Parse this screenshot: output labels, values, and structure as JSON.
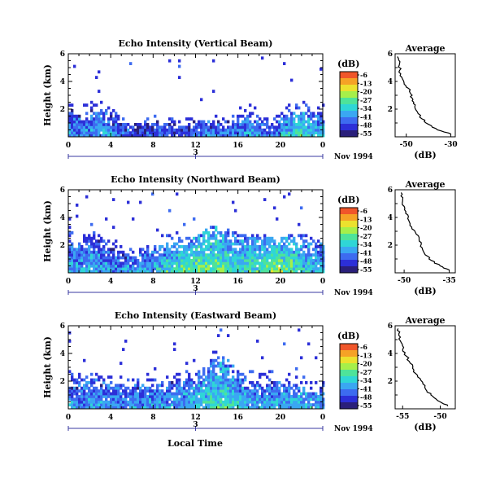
{
  "colormap": [
    "#2a1f7a",
    "#2c2fd8",
    "#3d6bf0",
    "#3aa7f2",
    "#2fd6d6",
    "#4ee39a",
    "#a6ef4a",
    "#ece12e",
    "#f5a226",
    "#f0562a"
  ],
  "footer": {
    "xlabel": "Local Time"
  },
  "chart_data": [
    {
      "type": "heatmap",
      "title": "Echo Intensity (Vertical Beam)",
      "ylabel": "Height (km)",
      "ylim": [
        0,
        6
      ],
      "xlim": [
        0,
        24
      ],
      "x_ticks": [
        "0",
        "4",
        "8",
        "12",
        "16",
        "20",
        "0"
      ],
      "y_ticks": [
        "2",
        "4",
        "6"
      ],
      "date_tick": "3",
      "date_label": "Nov 1994",
      "colorbar": {
        "unit": "(dB)",
        "ticks": [
          "-6",
          "-13",
          "-20",
          "-27",
          "-34",
          "-41",
          "-48",
          "-55"
        ]
      },
      "profile_top_km": [
        2.2,
        1.8,
        2.0,
        2.3,
        1.6,
        1.2,
        1.0,
        1.1,
        1.3,
        1.2,
        1.0,
        1.1,
        1.3,
        1.4,
        1.3,
        1.2,
        1.6,
        1.9,
        1.4,
        1.1,
        1.5,
        1.9,
        2.0,
        1.8
      ],
      "intensity": [
        0.25,
        0.3,
        0.28,
        0.3,
        0.26,
        0.2,
        0.18,
        0.2,
        0.22,
        0.2,
        0.2,
        0.22,
        0.25,
        0.26,
        0.26,
        0.24,
        0.28,
        0.3,
        0.26,
        0.25,
        0.4,
        0.5,
        0.45,
        0.35
      ],
      "average": {
        "title": "Average",
        "xlabel": "(dB)",
        "x_ticks": [
          "-50",
          "-30"
        ],
        "y_ticks": [
          "2",
          "4",
          "6"
        ],
        "xlim": [
          -55,
          -28
        ],
        "profile": [
          {
            "h": 0.2,
            "db": -30
          },
          {
            "h": 0.5,
            "db": -36
          },
          {
            "h": 0.9,
            "db": -40
          },
          {
            "h": 1.3,
            "db": -43
          },
          {
            "h": 1.8,
            "db": -45
          },
          {
            "h": 2.3,
            "db": -46
          },
          {
            "h": 2.7,
            "db": -47
          },
          {
            "h": 3.1,
            "db": -48
          },
          {
            "h": 3.5,
            "db": -49
          },
          {
            "h": 3.9,
            "db": -51
          },
          {
            "h": 4.3,
            "db": -52
          },
          {
            "h": 4.8,
            "db": -53
          },
          {
            "h": 5.3,
            "db": -53
          },
          {
            "h": 5.8,
            "db": -54
          }
        ]
      }
    },
    {
      "type": "heatmap",
      "title": "Echo Intensity (Northward Beam)",
      "ylabel": "Height (km)",
      "ylim": [
        0,
        6
      ],
      "xlim": [
        0,
        24
      ],
      "x_ticks": [
        "0",
        "4",
        "8",
        "12",
        "16",
        "20",
        "0"
      ],
      "y_ticks": [
        "2",
        "4",
        "6"
      ],
      "date_tick": "3",
      "date_label": "Nov 1994",
      "colorbar": {
        "unit": "(dB)",
        "ticks": [
          "-6",
          "-13",
          "-20",
          "-27",
          "-34",
          "-41",
          "-48",
          "-55"
        ]
      },
      "profile_top_km": [
        2.5,
        2.4,
        2.7,
        2.5,
        2.0,
        1.6,
        1.4,
        1.5,
        1.8,
        2.2,
        2.4,
        2.6,
        2.8,
        3.3,
        3.6,
        3.3,
        3.0,
        2.8,
        2.6,
        2.6,
        2.7,
        2.8,
        2.6,
        2.3
      ],
      "intensity": [
        0.3,
        0.32,
        0.33,
        0.3,
        0.28,
        0.3,
        0.3,
        0.32,
        0.4,
        0.48,
        0.5,
        0.52,
        0.55,
        0.55,
        0.5,
        0.45,
        0.45,
        0.48,
        0.55,
        0.6,
        0.55,
        0.5,
        0.42,
        0.35
      ],
      "average": {
        "title": "Average",
        "xlabel": "(dB)",
        "x_ticks": [
          "-50",
          "-35"
        ],
        "y_ticks": [
          "2",
          "4",
          "6"
        ],
        "xlim": [
          -53,
          -33
        ],
        "profile": [
          {
            "h": 0.2,
            "db": -35
          },
          {
            "h": 0.5,
            "db": -38
          },
          {
            "h": 0.9,
            "db": -41
          },
          {
            "h": 1.3,
            "db": -43
          },
          {
            "h": 1.8,
            "db": -44
          },
          {
            "h": 2.3,
            "db": -45
          },
          {
            "h": 2.8,
            "db": -46
          },
          {
            "h": 3.3,
            "db": -47.5
          },
          {
            "h": 3.8,
            "db": -48.5
          },
          {
            "h": 4.3,
            "db": -49.5
          },
          {
            "h": 4.8,
            "db": -50
          },
          {
            "h": 5.3,
            "db": -50.5
          },
          {
            "h": 5.8,
            "db": -51
          }
        ]
      }
    },
    {
      "type": "heatmap",
      "title": "Echo Intensity (Eastward Beam)",
      "ylabel": "Height (km)",
      "ylim": [
        0,
        6
      ],
      "xlim": [
        0,
        24
      ],
      "x_ticks": [
        "0",
        "4",
        "8",
        "12",
        "16",
        "20",
        "0"
      ],
      "y_ticks": [
        "2",
        "4",
        "6"
      ],
      "date_tick": "3",
      "date_label": "Nov 1994",
      "colorbar": {
        "unit": "(dB)",
        "ticks": [
          "-6",
          "-13",
          "-20",
          "-27",
          "-34",
          "-41",
          "-48",
          "-55"
        ]
      },
      "profile_top_km": [
        2.3,
        2.2,
        2.4,
        2.3,
        2.0,
        1.8,
        1.9,
        2.0,
        1.9,
        2.0,
        2.1,
        2.3,
        2.5,
        3.5,
        4.0,
        3.6,
        2.8,
        2.2,
        2.0,
        2.1,
        2.0,
        1.9,
        1.8,
        1.6
      ],
      "intensity": [
        0.28,
        0.3,
        0.3,
        0.3,
        0.28,
        0.28,
        0.3,
        0.3,
        0.3,
        0.32,
        0.35,
        0.38,
        0.42,
        0.45,
        0.45,
        0.42,
        0.38,
        0.35,
        0.33,
        0.35,
        0.38,
        0.4,
        0.38,
        0.32
      ],
      "average": {
        "title": "Average",
        "xlabel": "(dB)",
        "x_ticks": [
          "-55",
          "-50"
        ],
        "y_ticks": [
          "2",
          "4",
          "6"
        ],
        "xlim": [
          -56,
          -48
        ],
        "profile": [
          {
            "h": 0.2,
            "db": -49
          },
          {
            "h": 0.5,
            "db": -50
          },
          {
            "h": 0.9,
            "db": -51
          },
          {
            "h": 1.3,
            "db": -51.8
          },
          {
            "h": 1.8,
            "db": -52.3
          },
          {
            "h": 2.3,
            "db": -53
          },
          {
            "h": 2.8,
            "db": -53.5
          },
          {
            "h": 3.3,
            "db": -54
          },
          {
            "h": 3.8,
            "db": -54.5
          },
          {
            "h": 4.3,
            "db": -55
          },
          {
            "h": 4.8,
            "db": -55.2
          },
          {
            "h": 5.3,
            "db": -55.5
          },
          {
            "h": 5.8,
            "db": -55.6
          }
        ]
      }
    }
  ]
}
